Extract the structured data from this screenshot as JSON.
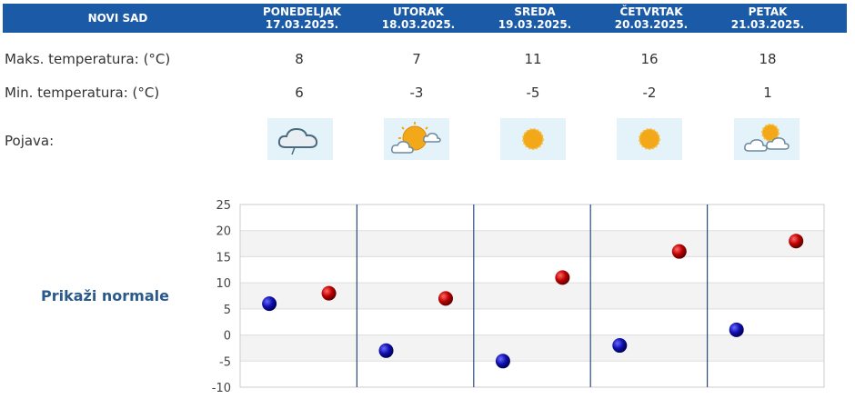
{
  "header": {
    "city": "NOVI SAD",
    "days": [
      {
        "name": "PONEDELJAK",
        "date": "17.03.2025."
      },
      {
        "name": "UTORAK",
        "date": "18.03.2025."
      },
      {
        "name": "SREDA",
        "date": "19.03.2025."
      },
      {
        "name": "ČETVRTAK",
        "date": "20.03.2025."
      },
      {
        "name": "PETAK",
        "date": "21.03.2025."
      }
    ]
  },
  "rows": {
    "max_label": "Maks. temperatura: (°C)",
    "min_label": "Min. temperatura: (°C)",
    "phenomenon_label": "Pojava:",
    "max": [
      "8",
      "7",
      "11",
      "16",
      "18"
    ],
    "min": [
      "6",
      "-3",
      "-5",
      "-2",
      "1"
    ],
    "icons": [
      "cloud-rain-icon",
      "partly-cloudy-icon",
      "sun-icon",
      "sun-icon",
      "sun-behind-clouds-icon"
    ]
  },
  "normals_label": "Prikaži normale",
  "colors": {
    "header": "#1a5aa6",
    "max_marker": "#c00000",
    "min_marker": "#1010b0",
    "icon_bg": "#e4f2fa"
  },
  "chart_data": {
    "type": "scatter",
    "categories": [
      "PONEDELJAK",
      "UTORAK",
      "SREDA",
      "ČETVRTAK",
      "PETAK"
    ],
    "series": [
      {
        "values": [
          8,
          7,
          11,
          16,
          18
        ]
      },
      {
        "values": [
          6,
          -3,
          -5,
          -2,
          1
        ]
      }
    ],
    "yticks": [
      -10,
      -5,
      0,
      5,
      10,
      15,
      20,
      25
    ],
    "ylim": [
      -10,
      25
    ],
    "grid": true
  }
}
